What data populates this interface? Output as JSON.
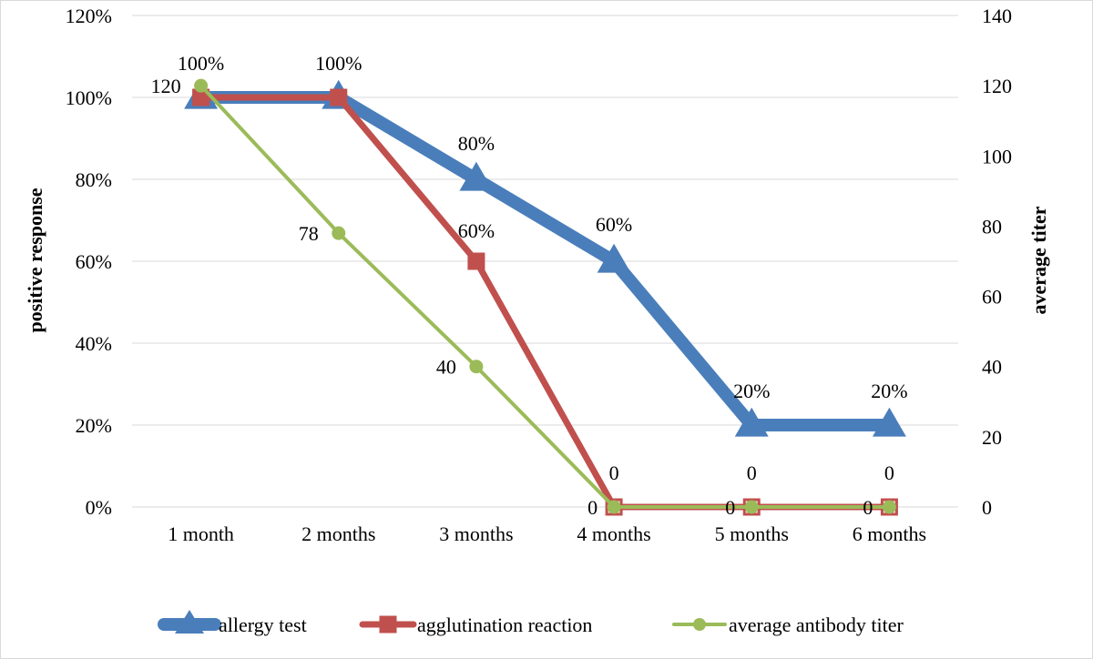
{
  "chart_data": {
    "type": "line",
    "categories": [
      "1 month",
      "2 months",
      "3 months",
      "4 months",
      "5 months",
      "6 months"
    ],
    "y_left": {
      "label": "positive response",
      "range": [
        0,
        1.2
      ],
      "ticks": [
        0,
        0.2,
        0.4,
        0.6,
        0.8,
        1.0,
        1.2
      ],
      "tick_labels": [
        "0%",
        "20%",
        "40%",
        "60%",
        "80%",
        "100%",
        "120%"
      ]
    },
    "y_right": {
      "label": "average titer",
      "range": [
        0,
        140
      ],
      "ticks": [
        0,
        20,
        40,
        60,
        80,
        100,
        120,
        140
      ],
      "tick_labels": [
        "0",
        "20",
        "40",
        "60",
        "80",
        "100",
        "120",
        "140"
      ]
    },
    "grid": true,
    "legend_position": "bottom",
    "series": [
      {
        "name": "allergy test",
        "axis": "left",
        "values": [
          1.0,
          1.0,
          0.8,
          0.6,
          0.2,
          0.2
        ],
        "labels": [
          "100%",
          "100%",
          "80%",
          "60%",
          "20%",
          "20%"
        ],
        "color": "#4a7ebb",
        "marker": "triangle"
      },
      {
        "name": "agglutination reaction",
        "axis": "left",
        "values": [
          1.0,
          1.0,
          0.6,
          0.0,
          0.0,
          0.0
        ],
        "labels": [
          "",
          "",
          "60%",
          "0",
          "0",
          "0"
        ],
        "color": "#c0504d",
        "marker": "square"
      },
      {
        "name": "average antibody titer",
        "axis": "right",
        "values": [
          120,
          78,
          40,
          0,
          0,
          0
        ],
        "labels": [
          "120",
          "78",
          "40",
          "0",
          "0",
          "0"
        ],
        "color": "#9bbb59",
        "marker": "circle"
      }
    ]
  }
}
